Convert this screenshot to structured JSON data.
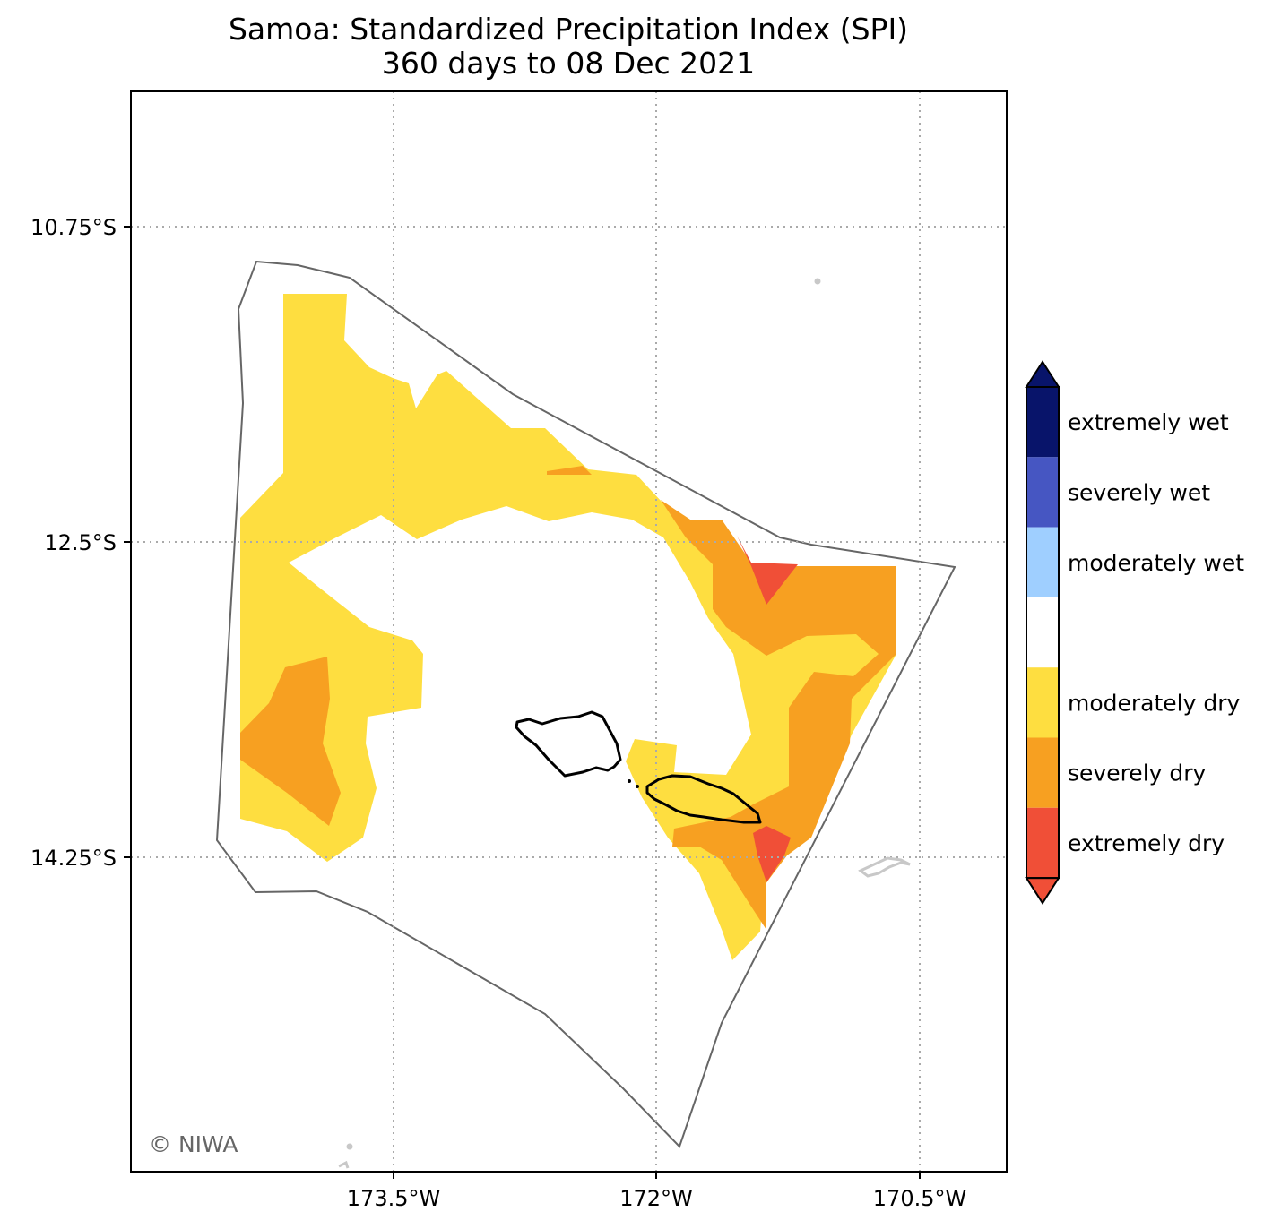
{
  "title": {
    "line1": "Samoa: Standardized Precipitation Index (SPI)",
    "line2": "360 days to 08 Dec 2021"
  },
  "axes": {
    "x_ticks": [
      "173.5°W",
      "172°W",
      "170.5°W"
    ],
    "y_ticks": [
      "10.75°S",
      "12.5°S",
      "14.25°S"
    ],
    "grid": "dotted"
  },
  "colorbar": {
    "orientation": "vertical",
    "placement": "right",
    "classes": [
      {
        "label": "extremely wet",
        "color": "#08146a"
      },
      {
        "label": "severely wet",
        "color": "#4656c2"
      },
      {
        "label": "moderately wet",
        "color": "#9fcfff"
      },
      {
        "label": "",
        "color": "#ffffff"
      },
      {
        "label": "moderately dry",
        "color": "#fede40"
      },
      {
        "label": "severely dry",
        "color": "#f7a021"
      },
      {
        "label": "extremely dry",
        "color": "#f04f37"
      }
    ]
  },
  "credit": "© NIWA",
  "colors": {
    "eez_outline": "#666666",
    "coast": "#000000",
    "other_land": "#c8c8c8",
    "gridline": "#aaaaaa"
  }
}
